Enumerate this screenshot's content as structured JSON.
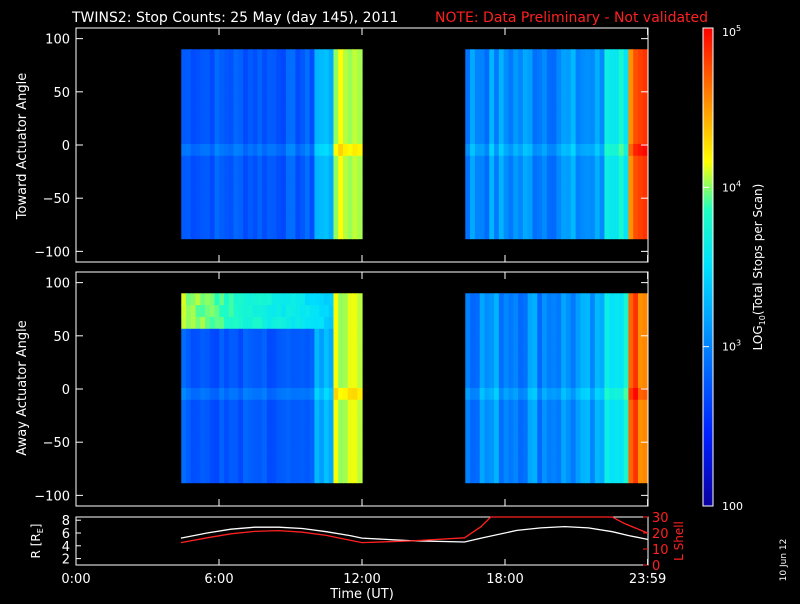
{
  "header": {
    "title": "TWINS2: Stop Counts: 25 May (day 145), 2011",
    "note": "NOTE: Data Preliminary - Not validated",
    "note_color": "#ff2020"
  },
  "side_stamp": "10 Jun 12",
  "chart_data": [
    {
      "type": "heatmap",
      "ylabel": "Toward Actuator Angle",
      "ylim": [
        -110,
        110
      ],
      "yticks": [
        "100",
        "50",
        "0",
        "−50",
        "−100"
      ],
      "ytick_values": [
        100,
        50,
        0,
        -50,
        -100
      ],
      "data_blocks": [
        {
          "t_start": "04:25",
          "t_end": "12:00",
          "angle_range": [
            -88,
            90
          ]
        },
        {
          "t_start": "16:20",
          "t_end": "23:59",
          "angle_range": [
            -88,
            90
          ]
        }
      ]
    },
    {
      "type": "heatmap",
      "ylabel": "Away Actuator Angle",
      "ylim": [
        -110,
        110
      ],
      "yticks": [
        "100",
        "50",
        "0",
        "−50",
        "−100"
      ],
      "ytick_values": [
        100,
        50,
        0,
        -50,
        -100
      ],
      "data_blocks": [
        {
          "t_start": "04:25",
          "t_end": "12:00",
          "angle_range": [
            -88,
            90
          ]
        },
        {
          "t_start": "16:20",
          "t_end": "23:59",
          "angle_range": [
            -88,
            90
          ]
        }
      ]
    },
    {
      "type": "line",
      "xlabel": "Time (UT)",
      "xticks": [
        "0:00",
        "6:00",
        "12:00",
        "18:00",
        "23:59"
      ],
      "xtick_hours": [
        0,
        6,
        12,
        18,
        23.983
      ],
      "ylabel_left": "R [RE]",
      "ylabel_left_main": "R [R",
      "ylabel_left_sub": "E",
      "ylabel_left_close": "]",
      "ylim_left": [
        1,
        8.5
      ],
      "yticks_left": [
        "2",
        "4",
        "6",
        "8"
      ],
      "ylabel_right": "L Shell",
      "ylim_right": [
        0,
        30
      ],
      "yticks_right": [
        "0",
        "10",
        "20",
        "30"
      ],
      "series": [
        {
          "axis": "left",
          "color": "#ffffff",
          "points": [
            [
              4.4,
              5.2
            ],
            [
              5.5,
              6.0
            ],
            [
              6.5,
              6.6
            ],
            [
              7.5,
              6.9
            ],
            [
              8.5,
              6.9
            ],
            [
              9.5,
              6.7
            ],
            [
              10.5,
              6.2
            ],
            [
              11.5,
              5.6
            ],
            [
              12.0,
              5.2
            ],
            [
              14.0,
              4.8
            ],
            [
              16.3,
              4.6
            ],
            [
              17.0,
              5.2
            ],
            [
              18.5,
              6.4
            ],
            [
              19.5,
              6.8
            ],
            [
              20.5,
              7.0
            ],
            [
              21.5,
              6.8
            ],
            [
              22.5,
              6.2
            ],
            [
              23.2,
              5.6
            ],
            [
              23.98,
              5.0
            ]
          ]
        },
        {
          "axis": "right",
          "color": "#ff2020",
          "points": [
            [
              4.4,
              14
            ],
            [
              5.5,
              17
            ],
            [
              6.5,
              19.5
            ],
            [
              7.5,
              21
            ],
            [
              8.5,
              21.5
            ],
            [
              9.5,
              20.5
            ],
            [
              10.5,
              18.5
            ],
            [
              11.5,
              15.5
            ],
            [
              12.0,
              14
            ],
            [
              14.0,
              15
            ],
            [
              16.3,
              17
            ],
            [
              17.0,
              24
            ],
            [
              17.4,
              30
            ],
            [
              22.5,
              30
            ],
            [
              23.0,
              26
            ],
            [
              23.98,
              20
            ]
          ]
        }
      ]
    }
  ],
  "colorbar": {
    "type": "colorbar",
    "label": "LOG10(Total Stops per Scan)",
    "label_main_a": "LOG",
    "label_sub": "10",
    "label_main_b": "(Total Stops per Scan)",
    "scale": "log",
    "range": [
      100,
      100000
    ],
    "ticks": [
      {
        "value": 100,
        "base": "100",
        "exp": ""
      },
      {
        "value": 1000,
        "base": "10",
        "exp": "3"
      },
      {
        "value": 10000,
        "base": "10",
        "exp": "4"
      },
      {
        "value": 100000,
        "base": "10",
        "exp": "5"
      }
    ],
    "colors": [
      "#0a00a0",
      "#0020ff",
      "#0080ff",
      "#00e0ff",
      "#20ffc0",
      "#ffff00",
      "#ff8000",
      "#ff0000"
    ]
  }
}
